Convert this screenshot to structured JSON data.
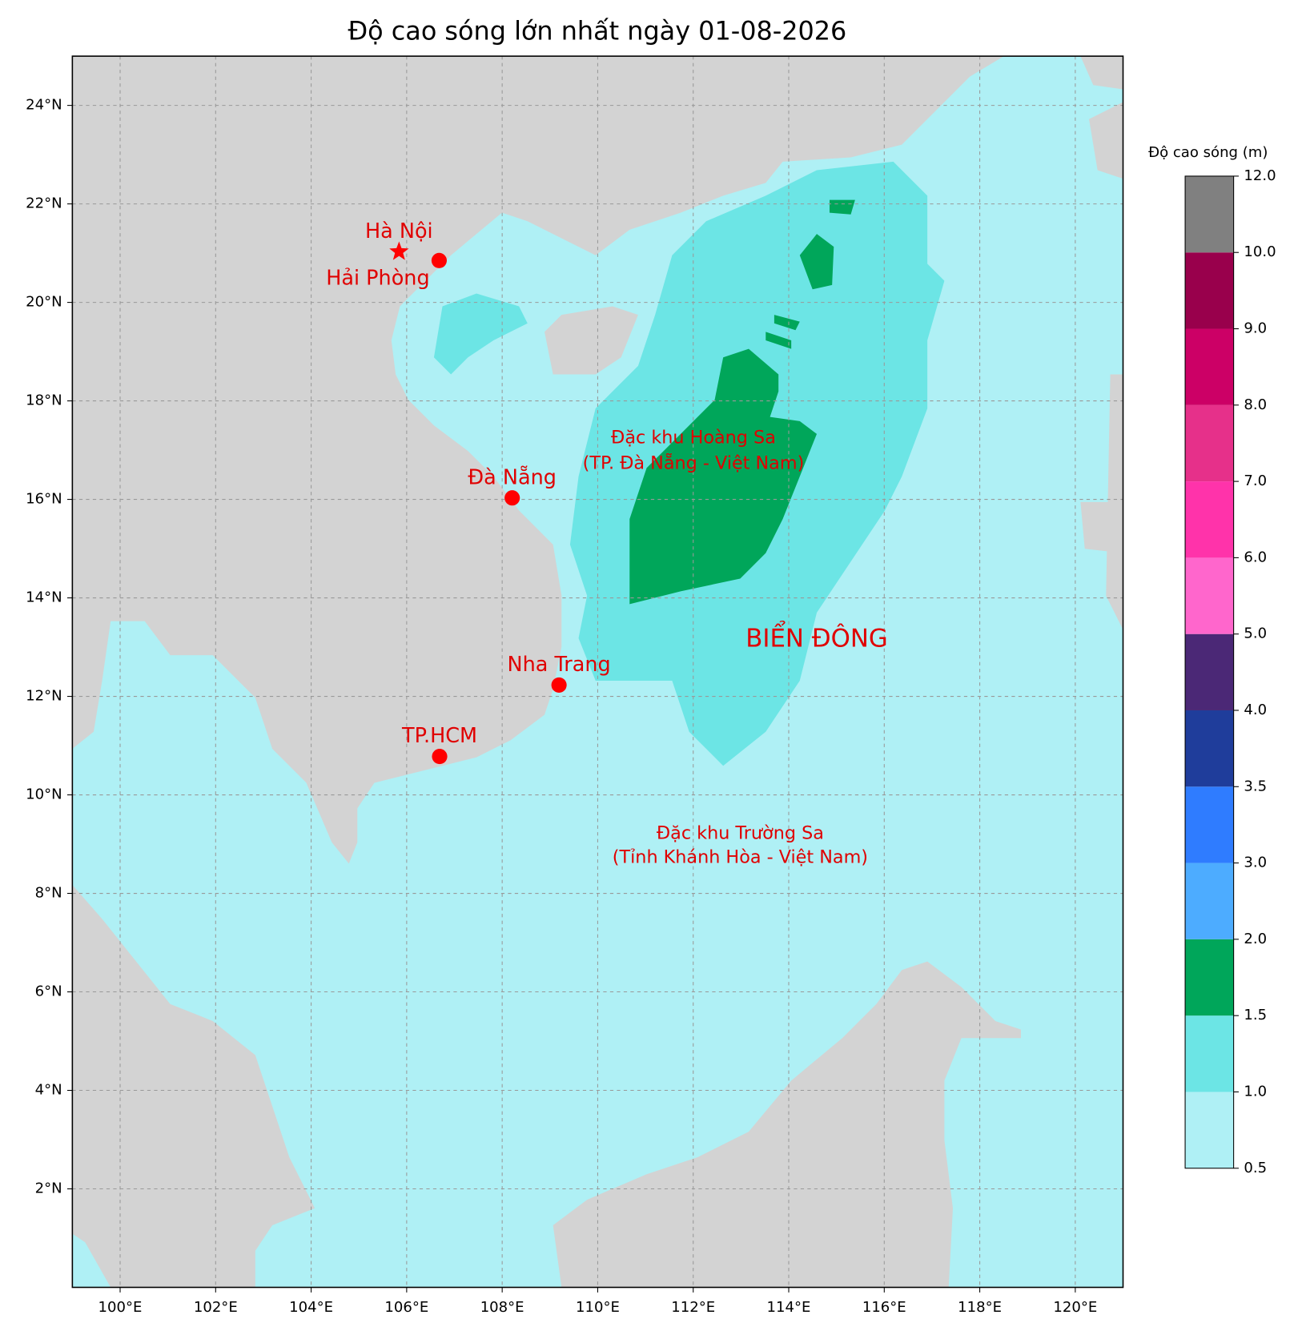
{
  "chart_data": {
    "type": "map",
    "title": "Độ cao sóng lớn nhất ngày 01-08-2026",
    "xlim": [
      99,
      121
    ],
    "ylim": [
      0,
      25
    ],
    "xticks": [
      {
        "value": 100,
        "label": "100°E"
      },
      {
        "value": 102,
        "label": "102°E"
      },
      {
        "value": 104,
        "label": "104°E"
      },
      {
        "value": 106,
        "label": "106°E"
      },
      {
        "value": 108,
        "label": "108°E"
      },
      {
        "value": 110,
        "label": "110°E"
      },
      {
        "value": 112,
        "label": "112°E"
      },
      {
        "value": 114,
        "label": "114°E"
      },
      {
        "value": 116,
        "label": "116°E"
      },
      {
        "value": 118,
        "label": "118°E"
      },
      {
        "value": 120,
        "label": "120°E"
      }
    ],
    "yticks": [
      {
        "value": 2,
        "label": "2°N"
      },
      {
        "value": 4,
        "label": "4°N"
      },
      {
        "value": 6,
        "label": "6°N"
      },
      {
        "value": 8,
        "label": "8°N"
      },
      {
        "value": 10,
        "label": "10°N"
      },
      {
        "value": 12,
        "label": "12°N"
      },
      {
        "value": 14,
        "label": "14°N"
      },
      {
        "value": 16,
        "label": "16°N"
      },
      {
        "value": 18,
        "label": "18°N"
      },
      {
        "value": 20,
        "label": "20°N"
      },
      {
        "value": 22,
        "label": "22°N"
      },
      {
        "value": 24,
        "label": "24°N"
      }
    ],
    "grid": true,
    "points": [
      {
        "name": "Hà Nội",
        "lon": 105.84,
        "lat": 21.03,
        "marker": "star",
        "color": "#ff0000"
      },
      {
        "name": "Hải Phòng",
        "lon": 106.68,
        "lat": 20.85,
        "marker": "circle",
        "color": "#ff0000"
      },
      {
        "name": "Đà Nẵng",
        "lon": 108.21,
        "lat": 16.03,
        "marker": "circle",
        "color": "#ff0000"
      },
      {
        "name": "Nha Trang",
        "lon": 109.19,
        "lat": 12.23,
        "marker": "circle",
        "color": "#ff0000"
      },
      {
        "name": "TP.HCM",
        "lon": 106.69,
        "lat": 10.78,
        "marker": "circle",
        "color": "#ff0000"
      }
    ],
    "annotations": [
      "Đặc khu Hoàng Sa",
      "(TP. Đà Nẵng - Việt Nam)",
      "BIỂN ĐÔNG",
      "Đặc khu Trường Sa",
      "(Tỉnh Khánh Hòa - Việt Nam)"
    ],
    "colorbar": {
      "label": "Độ cao sóng (m)",
      "ticks": [
        0.5,
        {
          "value": 1,
          "label": "1.0"
        },
        1.5,
        {
          "value": 2,
          "label": "2.0"
        },
        {
          "value": 3,
          "label": "3.0"
        },
        3.5,
        {
          "value": 4,
          "label": "4.0"
        },
        {
          "value": 5,
          "label": "5.0"
        },
        {
          "value": 6,
          "label": "6.0"
        },
        {
          "value": 7,
          "label": "7.0"
        },
        {
          "value": 8,
          "label": "8.0"
        },
        {
          "value": 9,
          "label": "9.0"
        },
        {
          "value": 10,
          "label": "10.0"
        },
        {
          "value": 12,
          "label": "12.0"
        }
      ],
      "colors": [
        "#aff0f5",
        "#6ce5e5",
        "#00a65a",
        "#4dacff",
        "#2f7cff",
        "#1f3d9b",
        "#4b2876",
        "#ff66cc",
        "#ff33aa",
        "#e6308a",
        "#cc0066",
        "#99004c",
        "#808080"
      ]
    }
  }
}
